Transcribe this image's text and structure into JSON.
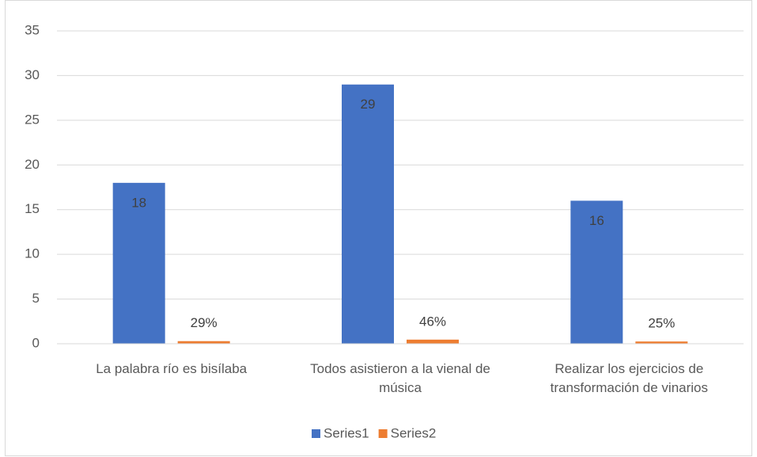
{
  "chart_data": {
    "type": "bar",
    "categories": [
      "La palabra río es bisílaba",
      "Todos asistieron a la vienal de música",
      "Realizar los ejercicios de transformación de vinarios"
    ],
    "series": [
      {
        "name": "Series1",
        "color": "#4472c4",
        "values": [
          18,
          29,
          16
        ]
      },
      {
        "name": "Series2",
        "color": "#ed7d31",
        "values": [
          0.29,
          0.46,
          0.25
        ],
        "value_labels": [
          "29%",
          "46%",
          "25%"
        ]
      }
    ],
    "ylim": [
      0,
      35
    ],
    "yticks": [
      0,
      5,
      10,
      15,
      20,
      25,
      30,
      35
    ],
    "grid": true,
    "legend": "bottom"
  }
}
